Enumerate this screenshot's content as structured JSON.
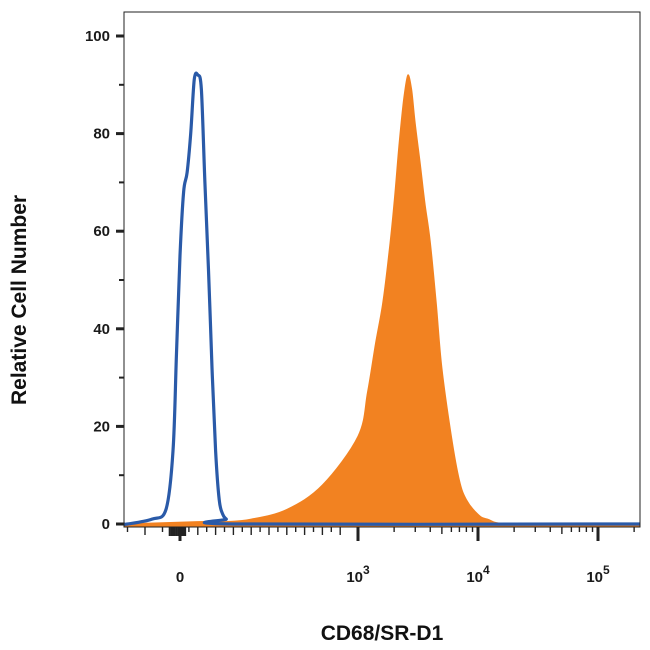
{
  "chart_data": {
    "type": "area",
    "xlabel": "CD68/SR-D1",
    "ylabel": "Relative Cell Number",
    "x_scale": "biexponential",
    "ylim": [
      0,
      100
    ],
    "grid": false,
    "y_ticks": [
      "0",
      "20",
      "40",
      "60",
      "80",
      "100"
    ],
    "x_ticks": [
      {
        "value": 0,
        "base": "0",
        "exp": ""
      },
      {
        "value": 1000,
        "base": "10",
        "exp": "3"
      },
      {
        "value": 10000,
        "base": "10",
        "exp": "4"
      },
      {
        "value": 100000,
        "base": "10",
        "exp": "5"
      }
    ],
    "series": [
      {
        "style": "outline",
        "color": "#2a5aa8",
        "points": [
          [
            -400,
            0
          ],
          [
            -150,
            0
          ],
          [
            -80,
            1
          ],
          [
            -40,
            3
          ],
          [
            -20,
            15
          ],
          [
            -10,
            35
          ],
          [
            0,
            55
          ],
          [
            20,
            68
          ],
          [
            40,
            72
          ],
          [
            60,
            80
          ],
          [
            80,
            91
          ],
          [
            100,
            92
          ],
          [
            120,
            89
          ],
          [
            140,
            70
          ],
          [
            160,
            52
          ],
          [
            180,
            32
          ],
          [
            200,
            15
          ],
          [
            220,
            5
          ],
          [
            240,
            2
          ],
          [
            260,
            1
          ],
          [
            300,
            0
          ],
          [
            100000,
            0
          ],
          [
            300000,
            0
          ]
        ]
      },
      {
        "style": "filled",
        "color": "#f28221",
        "points": [
          [
            -400,
            0
          ],
          [
            100,
            0.5
          ],
          [
            250,
            0.5
          ],
          [
            400,
            1
          ],
          [
            600,
            3
          ],
          [
            800,
            8
          ],
          [
            1000,
            18
          ],
          [
            1200,
            27
          ],
          [
            1400,
            37
          ],
          [
            1600,
            45
          ],
          [
            1800,
            55
          ],
          [
            2000,
            66
          ],
          [
            2200,
            78
          ],
          [
            2400,
            87
          ],
          [
            2600,
            92
          ],
          [
            2800,
            89
          ],
          [
            3000,
            82
          ],
          [
            3300,
            74
          ],
          [
            3600,
            66
          ],
          [
            4000,
            58
          ],
          [
            4500,
            45
          ],
          [
            5000,
            32
          ],
          [
            6000,
            18
          ],
          [
            7000,
            9
          ],
          [
            8000,
            5
          ],
          [
            10000,
            2
          ],
          [
            12000,
            1
          ],
          [
            20000,
            0
          ],
          [
            300000,
            0
          ]
        ]
      }
    ]
  }
}
